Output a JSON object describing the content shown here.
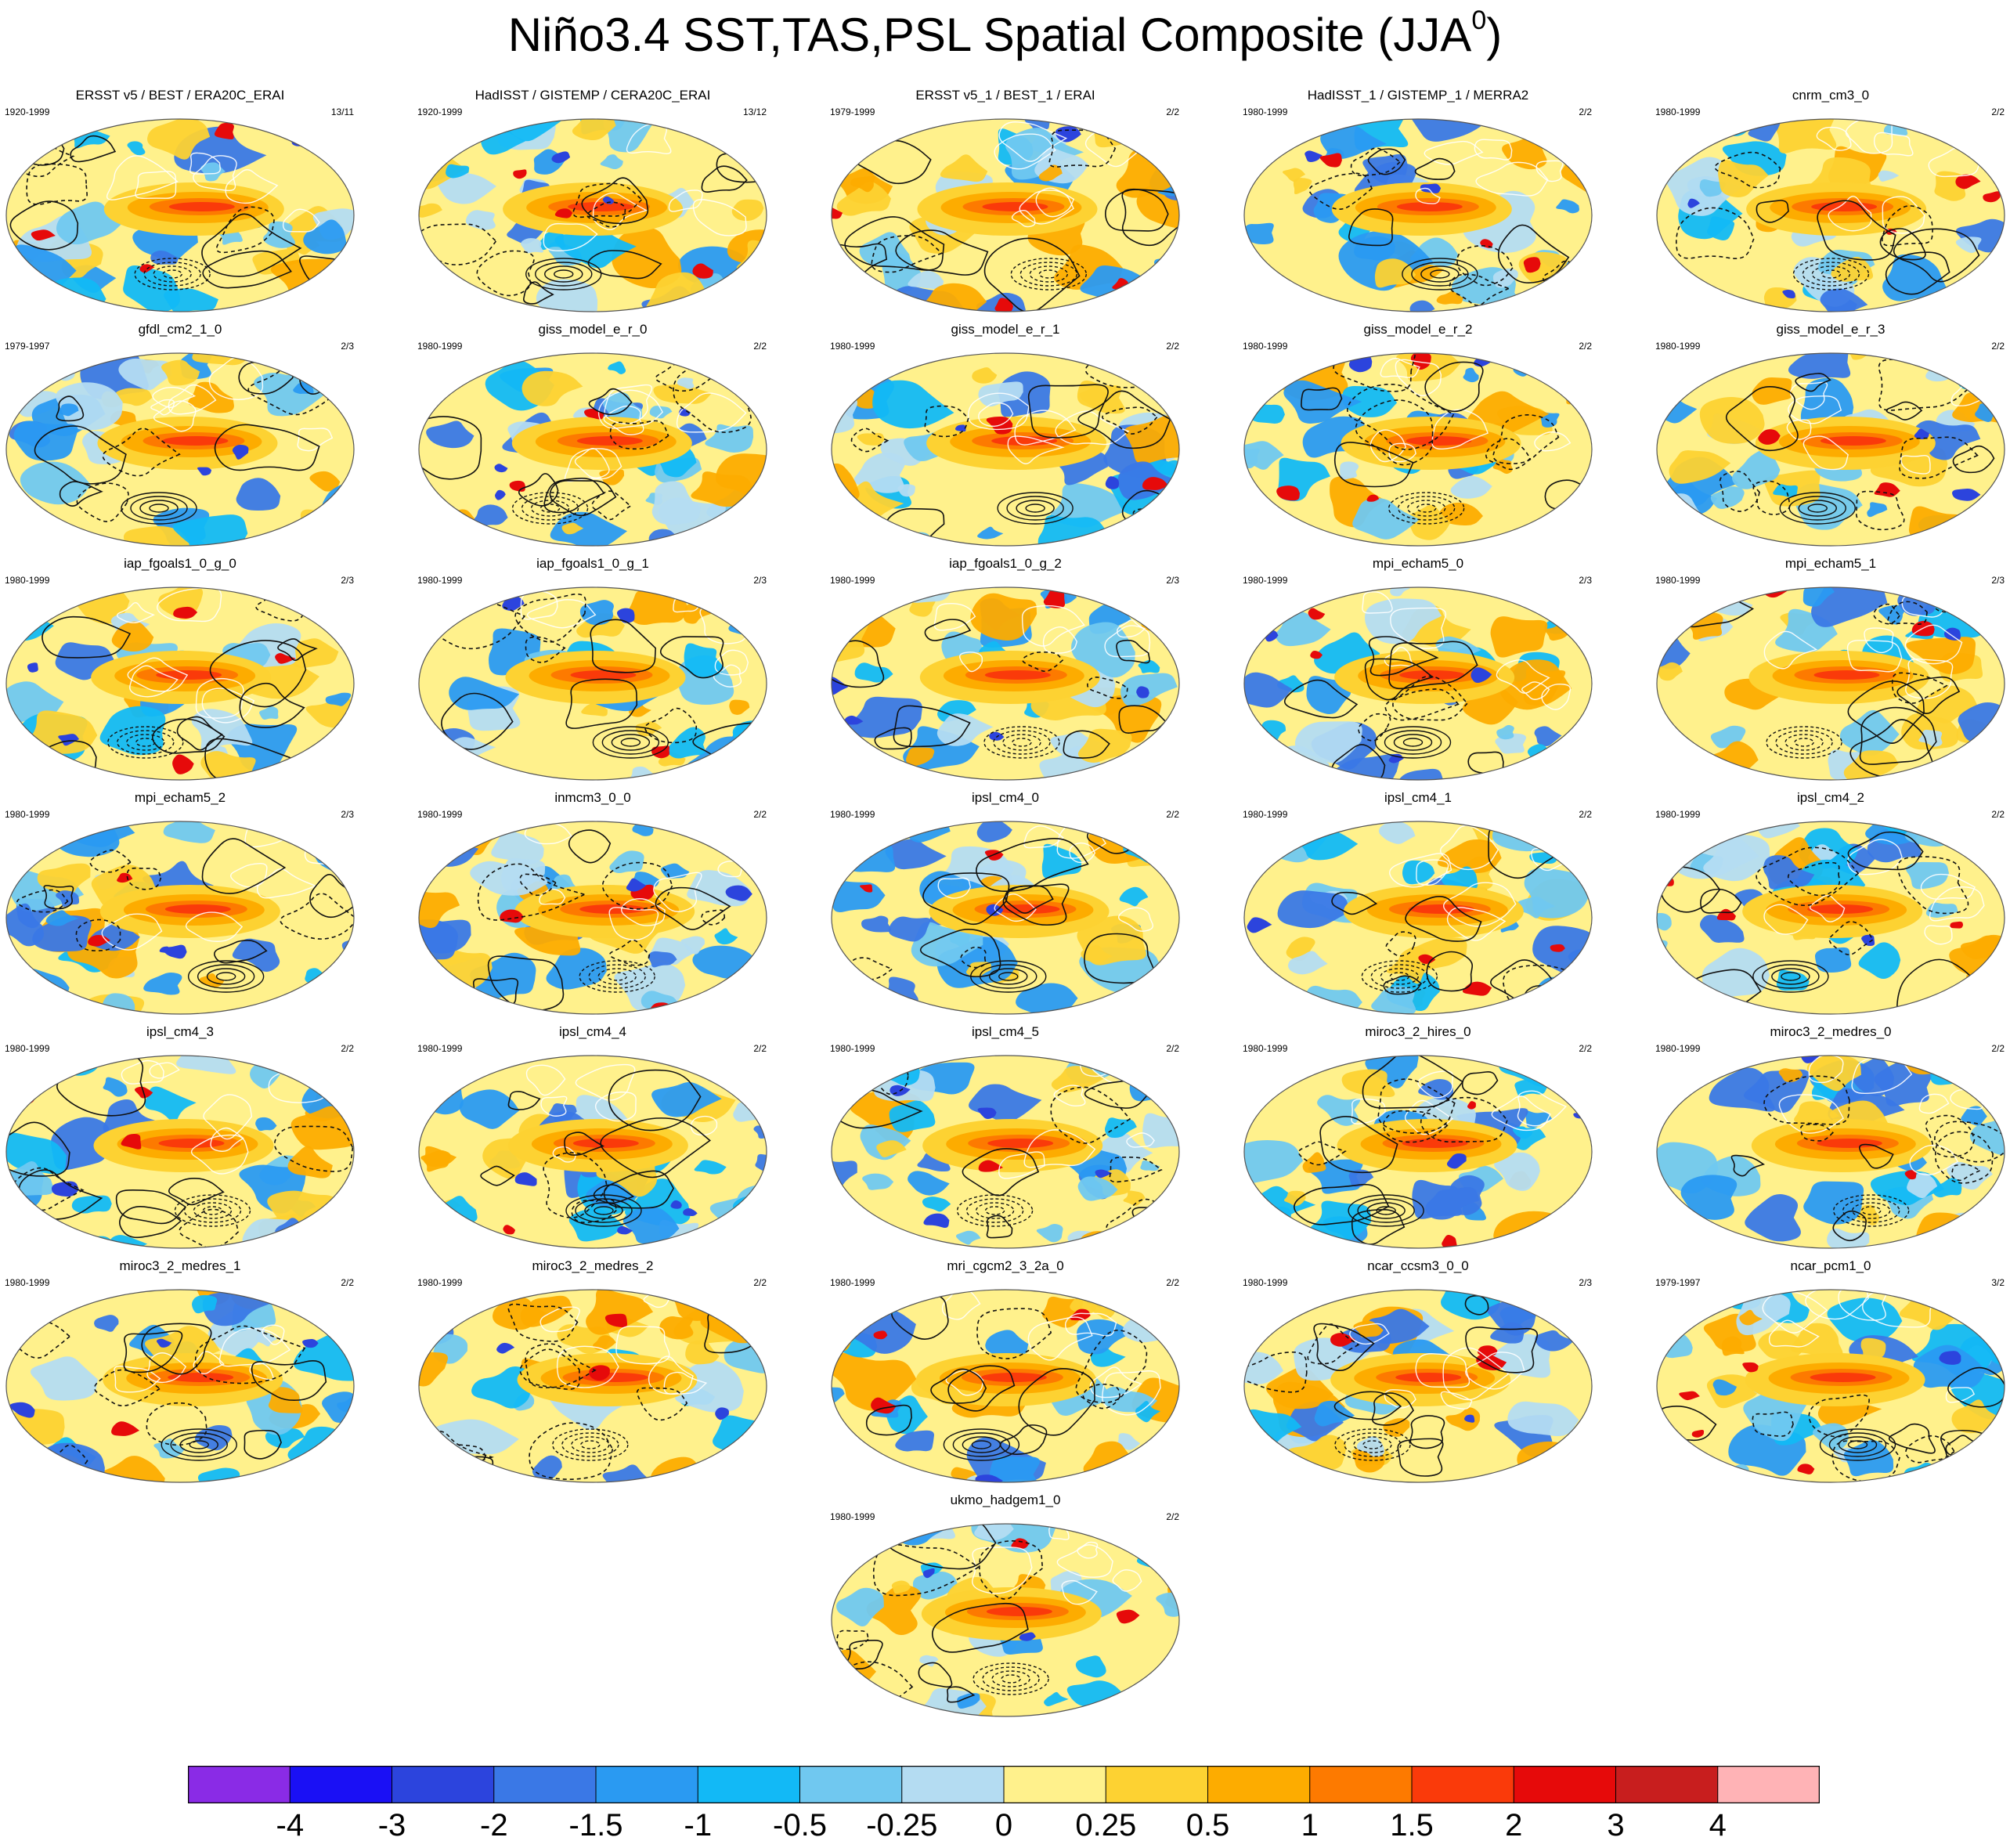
{
  "title": {
    "main": "Niño3.4 SST,TAS,PSL Spatial Composite (JJA",
    "superscript": "0",
    "close": ")"
  },
  "chart_data": {
    "type": "heatmap",
    "description_of_fields": "shaded composite anomalies with contour overlays on global maps",
    "grid": {
      "columns": 5,
      "rows": 7
    },
    "panels": [
      {
        "name": "ERSST v5 / BEST / ERA20C_ERAI",
        "years": "1920-1999",
        "count": "13/11"
      },
      {
        "name": "HadISST / GISTEMP / CERA20C_ERAI",
        "years": "1920-1999",
        "count": "13/12"
      },
      {
        "name": "ERSST v5_1 / BEST_1 / ERAI",
        "years": "1979-1999",
        "count": "2/2"
      },
      {
        "name": "HadISST_1 / GISTEMP_1 / MERRA2",
        "years": "1980-1999",
        "count": "2/2"
      },
      {
        "name": "cnrm_cm3_0",
        "years": "1980-1999",
        "count": "2/2"
      },
      {
        "name": "gfdl_cm2_1_0",
        "years": "1979-1997",
        "count": "2/3"
      },
      {
        "name": "giss_model_e_r_0",
        "years": "1980-1999",
        "count": "2/2"
      },
      {
        "name": "giss_model_e_r_1",
        "years": "1980-1999",
        "count": "2/2"
      },
      {
        "name": "giss_model_e_r_2",
        "years": "1980-1999",
        "count": "2/2"
      },
      {
        "name": "giss_model_e_r_3",
        "years": "1980-1999",
        "count": "2/2"
      },
      {
        "name": "iap_fgoals1_0_g_0",
        "years": "1980-1999",
        "count": "2/3"
      },
      {
        "name": "iap_fgoals1_0_g_1",
        "years": "1980-1999",
        "count": "2/3"
      },
      {
        "name": "iap_fgoals1_0_g_2",
        "years": "1980-1999",
        "count": "2/3"
      },
      {
        "name": "mpi_echam5_0",
        "years": "1980-1999",
        "count": "2/3"
      },
      {
        "name": "mpi_echam5_1",
        "years": "1980-1999",
        "count": "2/3"
      },
      {
        "name": "mpi_echam5_2",
        "years": "1980-1999",
        "count": "2/3"
      },
      {
        "name": "inmcm3_0_0",
        "years": "1980-1999",
        "count": "2/2"
      },
      {
        "name": "ipsl_cm4_0",
        "years": "1980-1999",
        "count": "2/2"
      },
      {
        "name": "ipsl_cm4_1",
        "years": "1980-1999",
        "count": "2/2"
      },
      {
        "name": "ipsl_cm4_2",
        "years": "1980-1999",
        "count": "2/2"
      },
      {
        "name": "ipsl_cm4_3",
        "years": "1980-1999",
        "count": "2/2"
      },
      {
        "name": "ipsl_cm4_4",
        "years": "1980-1999",
        "count": "2/2"
      },
      {
        "name": "ipsl_cm4_5",
        "years": "1980-1999",
        "count": "2/2"
      },
      {
        "name": "miroc3_2_hires_0",
        "years": "1980-1999",
        "count": "2/2"
      },
      {
        "name": "miroc3_2_medres_0",
        "years": "1980-1999",
        "count": "2/2"
      },
      {
        "name": "miroc3_2_medres_1",
        "years": "1980-1999",
        "count": "2/2"
      },
      {
        "name": "miroc3_2_medres_2",
        "years": "1980-1999",
        "count": "2/2"
      },
      {
        "name": "mri_cgcm2_3_2a_0",
        "years": "1980-1999",
        "count": "2/2"
      },
      {
        "name": "ncar_ccsm3_0_0",
        "years": "1980-1999",
        "count": "2/3"
      },
      {
        "name": "ncar_pcm1_0",
        "years": "1979-1997",
        "count": "3/2"
      },
      {
        "name": "ukmo_hadgem1_0",
        "years": "1980-1999",
        "count": "2/2"
      }
    ],
    "colorbar": {
      "labels": [
        "-4",
        "-3",
        "-2",
        "-1.5",
        "-1",
        "-0.5",
        "-0.25",
        "0",
        "0.25",
        "0.5",
        "1",
        "1.5",
        "2",
        "3",
        "4"
      ],
      "colors": [
        "#8a2be6",
        "#1a10f5",
        "#2c44dd",
        "#3a78e6",
        "#2a9af2",
        "#12b9f6",
        "#70c8f0",
        "#b4dcf2",
        "#fff18c",
        "#fdd232",
        "#fdac00",
        "#fd7a00",
        "#fa3a0a",
        "#e60a0a",
        "#c81e1e",
        "#ffb3b6"
      ]
    }
  }
}
